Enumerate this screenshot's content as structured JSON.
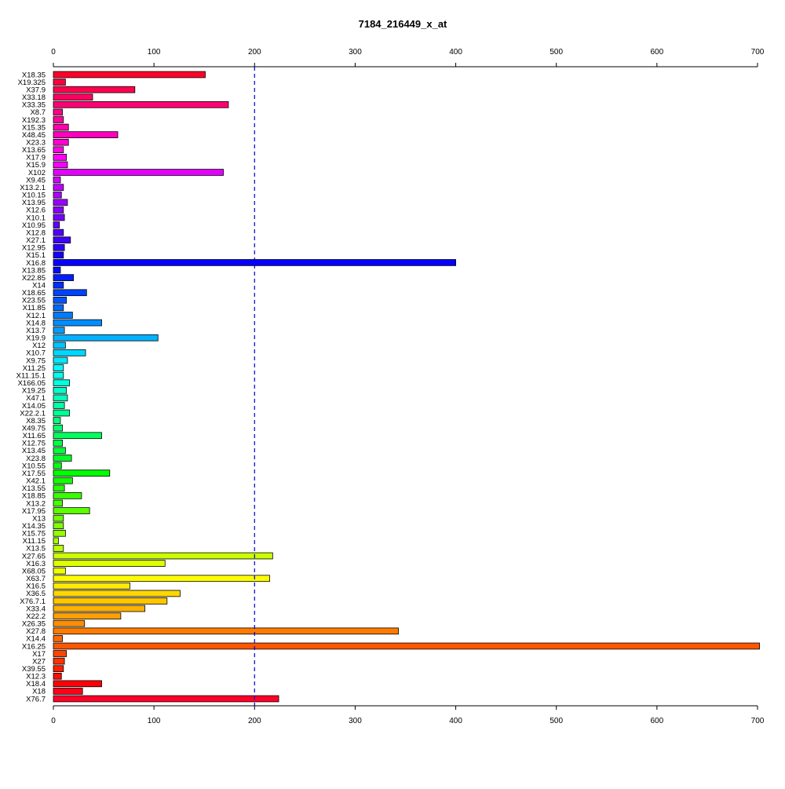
{
  "chart_data": {
    "type": "bar",
    "orientation": "horizontal",
    "title": "7184_216449_x_at",
    "xlabel": "",
    "ylabel": "",
    "xlim": [
      0,
      700
    ],
    "x_ticks": [
      0,
      100,
      200,
      300,
      400,
      500,
      600,
      700
    ],
    "reference_line": {
      "value": 200,
      "style": "dashed",
      "color": "#0000cc"
    },
    "grid": false,
    "legend": "none",
    "bar_colors": "rainbow gradient from red through magenta, blue, cyan, green, yellow, orange back to red",
    "categories": [
      "X18.35",
      "X19.325",
      "X37.9",
      "X33.18",
      "X33.35",
      "X8.7",
      "X192.3",
      "X15.35",
      "X48.45",
      "X23.3",
      "X13.65",
      "X17.9",
      "X15.9",
      "X102",
      "X9.45",
      "X13.2.1",
      "X10.15",
      "X13.95",
      "X12.6",
      "X10.1",
      "X10.95",
      "X12.8",
      "X27.1",
      "X12.95",
      "X15.1",
      "X16.8",
      "X13.85",
      "X22.85",
      "X14",
      "X18.65",
      "X23.55",
      "X11.85",
      "X12.1",
      "X14.8",
      "X13.7",
      "X19.9",
      "X12",
      "X10.7",
      "X9.75",
      "X11.25",
      "X11.15.1",
      "X166.05",
      "X19.25",
      "X47.1",
      "X14.05",
      "X22.2.1",
      "X8.35",
      "X49.75",
      "X11.65",
      "X12.75",
      "X13.45",
      "X23.8",
      "X10.55",
      "X17.55",
      "X42.1",
      "X13.55",
      "X18.85",
      "X13.2",
      "X17.95",
      "X13",
      "X14.35",
      "X15.75",
      "X11.15",
      "X13.5",
      "X27.65",
      "X16.3",
      "X68.05",
      "X63.7",
      "X16.5",
      "X36.5",
      "X76.7.1",
      "X33.4",
      "X22.2",
      "X26.35",
      "X27.8",
      "X14.4",
      "X16.25",
      "X17",
      "X27",
      "X39.55",
      "X12.3",
      "X18.4",
      "X18",
      "X76.7"
    ],
    "values": [
      151,
      12,
      81,
      39,
      174,
      9,
      10,
      15,
      64,
      15,
      10,
      13,
      14,
      169,
      7,
      10,
      8,
      14,
      10,
      11,
      6,
      10,
      17,
      11,
      10,
      400,
      7,
      20,
      10,
      33,
      13,
      10,
      19,
      48,
      11,
      104,
      12,
      32,
      14,
      10,
      10,
      16,
      13,
      14,
      11,
      16,
      7,
      9,
      48,
      9,
      12,
      18,
      8,
      56,
      19,
      11,
      28,
      9,
      36,
      10,
      10,
      12,
      5,
      10,
      218,
      111,
      12,
      215,
      76,
      126,
      113,
      91,
      67,
      31,
      343,
      9,
      702,
      13,
      11,
      10,
      8,
      48,
      29,
      224
    ]
  }
}
